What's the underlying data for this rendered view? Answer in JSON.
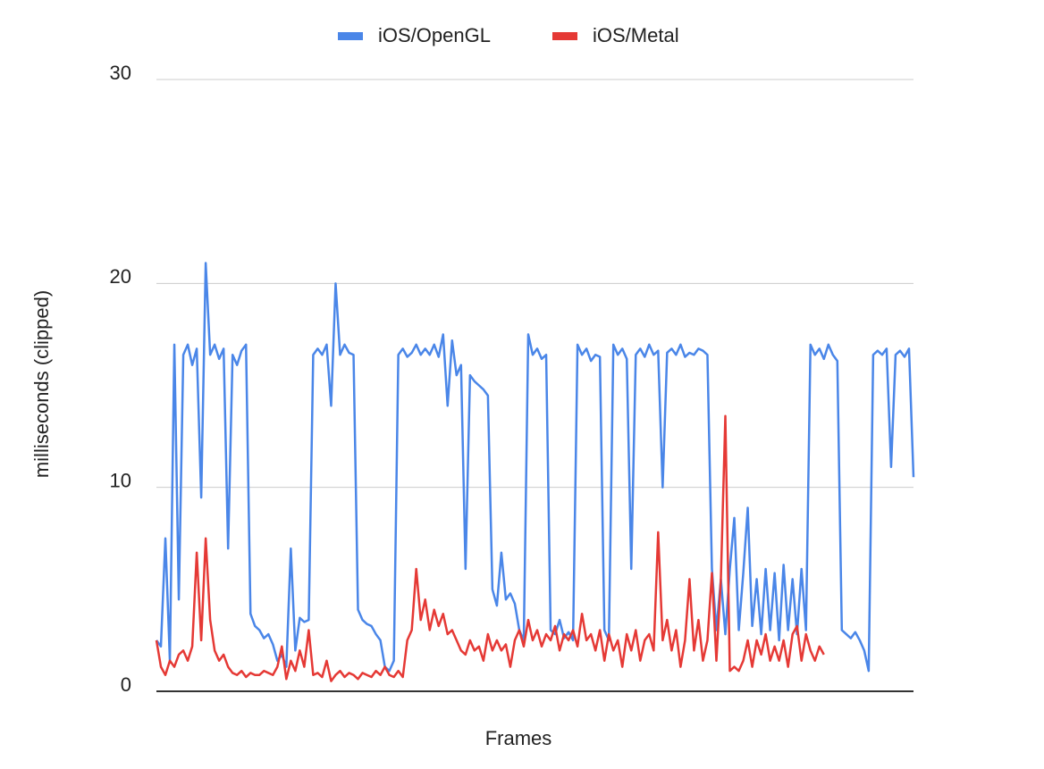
{
  "chart_data": {
    "type": "line",
    "ylabel": "milliseconds (clipped)",
    "xlabel": "Frames",
    "ylim": [
      0,
      30
    ],
    "yticks": [
      0,
      10,
      20,
      30
    ],
    "grid": true,
    "legend": "top",
    "series": [
      {
        "name": "iOS/OpenGL",
        "color": "#4a86e8",
        "values": [
          2.5,
          2.2,
          7.5,
          1.5,
          17,
          4.5,
          16.5,
          17,
          16,
          16.8,
          9.5,
          21,
          16.5,
          17,
          16.3,
          16.8,
          7,
          16.5,
          16,
          16.7,
          17,
          3.8,
          3.2,
          3,
          2.6,
          2.8,
          2.3,
          1.5,
          1.8,
          1.2,
          7,
          2,
          3.6,
          3.4,
          3.5,
          16.5,
          16.8,
          16.5,
          17,
          14,
          20,
          16.5,
          17,
          16.6,
          16.5,
          4,
          3.5,
          3.3,
          3.2,
          2.8,
          2.5,
          1.2,
          1,
          1.5,
          16.5,
          16.8,
          16.4,
          16.6,
          17,
          16.5,
          16.8,
          16.5,
          17,
          16.4,
          17.5,
          14,
          17.2,
          15.5,
          16,
          6,
          15.5,
          15.2,
          15,
          14.8,
          14.5,
          5,
          4.2,
          6.8,
          4.5,
          4.8,
          4.3,
          3,
          2.5,
          17.5,
          16.5,
          16.8,
          16.3,
          16.5,
          3,
          2.8,
          3.5,
          2.6,
          2.9,
          2.5,
          17,
          16.5,
          16.8,
          16.2,
          16.5,
          16.4,
          3,
          2.5,
          17,
          16.5,
          16.8,
          16.3,
          6,
          16.5,
          16.8,
          16.4,
          17,
          16.5,
          16.7,
          10,
          16.6,
          16.8,
          16.5,
          17,
          16.4,
          16.6,
          16.5,
          16.8,
          16.7,
          16.5,
          6,
          3,
          5.5,
          2.8,
          6,
          8.5,
          3,
          5.8,
          9,
          3.2,
          5.5,
          2.8,
          6,
          3,
          5.8,
          2.5,
          6.2,
          3,
          5.5,
          2.8,
          6,
          3,
          17,
          16.5,
          16.8,
          16.3,
          17,
          16.5,
          16.2,
          3,
          2.8,
          2.6,
          2.9,
          2.5,
          2,
          1,
          16.5,
          16.7,
          16.5,
          16.8,
          11,
          16.5,
          16.7,
          16.4,
          16.8,
          10.5
        ]
      },
      {
        "name": "iOS/Metal",
        "color": "#e53935",
        "values": [
          2.5,
          1.2,
          0.8,
          1.5,
          1.2,
          1.8,
          2,
          1.5,
          2.2,
          6.8,
          2.5,
          7.5,
          3.5,
          2,
          1.5,
          1.8,
          1.2,
          0.9,
          0.8,
          1,
          0.7,
          0.9,
          0.8,
          0.8,
          1,
          0.9,
          0.8,
          1.2,
          2.2,
          0.6,
          1.5,
          1,
          2,
          1.2,
          3,
          0.8,
          0.9,
          0.7,
          1.5,
          0.5,
          0.8,
          1,
          0.7,
          0.9,
          0.8,
          0.6,
          0.9,
          0.8,
          0.7,
          1,
          0.8,
          1.2,
          0.8,
          0.7,
          1,
          0.7,
          2.5,
          3,
          6,
          3.5,
          4.5,
          3,
          4,
          3.2,
          3.8,
          2.8,
          3,
          2.5,
          2,
          1.8,
          2.5,
          2,
          2.2,
          1.5,
          2.8,
          2,
          2.5,
          2,
          2.3,
          1.2,
          2.5,
          3,
          2.2,
          3.5,
          2.5,
          3,
          2.2,
          2.8,
          2.5,
          3.2,
          2,
          2.8,
          2.5,
          3,
          2.2,
          3.8,
          2.5,
          2.8,
          2,
          3,
          1.5,
          2.8,
          2,
          2.5,
          1.2,
          2.8,
          2,
          3,
          1.5,
          2.5,
          2.8,
          2,
          7.8,
          2.5,
          3.5,
          2,
          3,
          1.2,
          2.5,
          5.5,
          2,
          3.5,
          1.5,
          2.5,
          5.8,
          1.5,
          5.5,
          13.5,
          1,
          1.2,
          1,
          1.5,
          2.5,
          1.2,
          2.5,
          1.8,
          2.8,
          1.5,
          2.2,
          1.5,
          2.5,
          1.2,
          2.8,
          3.2,
          1.5,
          2.8,
          2,
          1.5,
          2.2,
          1.8,
          null,
          null,
          null,
          null,
          null,
          null,
          null,
          null,
          null,
          null,
          null,
          null,
          null,
          null,
          null,
          null,
          null,
          null,
          null,
          null
        ]
      }
    ]
  }
}
